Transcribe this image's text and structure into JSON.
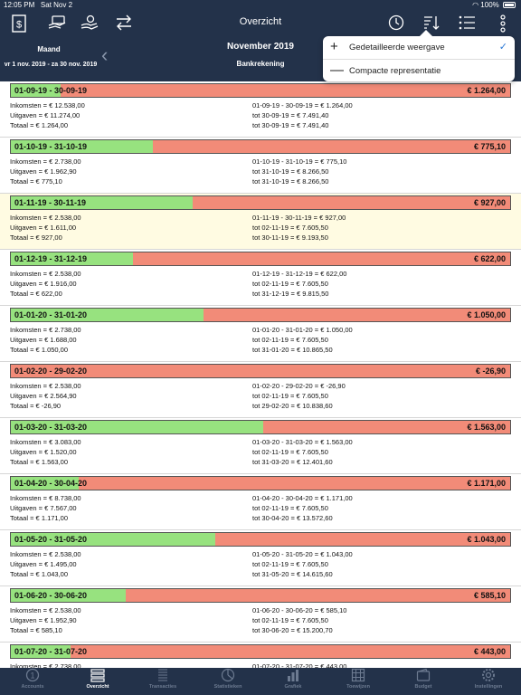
{
  "status_bar": {
    "time": "12:05 PM",
    "date": "Sat Nov 2",
    "wifi": "wifi-icon",
    "battery": "100%"
  },
  "navbar": {
    "title": "Overzicht",
    "period_label": "Maand",
    "period_range": "vr 1 nov. 2019 - za 30 nov. 2019",
    "month_title": "November 2019",
    "account": "Bankrekening"
  },
  "popover": {
    "items": [
      {
        "label": "Gedetailleerde weergave",
        "glyph": "+",
        "checked": true
      },
      {
        "label": "Compacte representatie",
        "glyph": "—",
        "checked": false
      }
    ]
  },
  "periods": [
    {
      "range": "01-09-19 - 30-09-19",
      "total": "€ 1.264,00",
      "income_fraction": 0.1,
      "current": false,
      "left": [
        "Inkomsten = € 12.538,00",
        "Uitgaven = € 11.274,00",
        "Totaal = € 1.264,00"
      ],
      "right": [
        "01-09-19 - 30-09-19 = € 1.264,00",
        "tot 30-09-19 = € 7.491,40",
        "tot 30-09-19 = € 7.491,40"
      ]
    },
    {
      "range": "01-10-19 - 31-10-19",
      "total": "€ 775,10",
      "income_fraction": 0.285,
      "current": false,
      "left": [
        "Inkomsten = € 2.738,00",
        "Uitgaven = € 1.962,90",
        "Totaal = € 775,10"
      ],
      "right": [
        "01-10-19 - 31-10-19 = € 775,10",
        "tot 31-10-19 = € 8.266,50",
        "tot 31-10-19 = € 8.266,50"
      ]
    },
    {
      "range": "01-11-19 - 30-11-19",
      "total": "€ 927,00",
      "income_fraction": 0.365,
      "current": true,
      "left": [
        "Inkomsten = € 2.538,00",
        "Uitgaven = € 1.611,00",
        "Totaal = € 927,00"
      ],
      "right": [
        "01-11-19 - 30-11-19 = € 927,00",
        "tot 02-11-19 = € 7.605,50",
        "tot 30-11-19 = € 9.193,50"
      ]
    },
    {
      "range": "01-12-19 - 31-12-19",
      "total": "€ 622,00",
      "income_fraction": 0.245,
      "current": false,
      "left": [
        "Inkomsten = € 2.538,00",
        "Uitgaven = € 1.916,00",
        "Totaal = € 622,00"
      ],
      "right": [
        "01-12-19 - 31-12-19 = € 622,00",
        "tot 02-11-19 = € 7.605,50",
        "tot 31-12-19 = € 9.815,50"
      ]
    },
    {
      "range": "01-01-20 - 31-01-20",
      "total": "€ 1.050,00",
      "income_fraction": 0.385,
      "current": false,
      "left": [
        "Inkomsten = € 2.738,00",
        "Uitgaven = € 1.688,00",
        "Totaal = € 1.050,00"
      ],
      "right": [
        "01-01-20 - 31-01-20 = € 1.050,00",
        "tot 02-11-19 = € 7.605,50",
        "tot 31-01-20 = € 10.865,50"
      ]
    },
    {
      "range": "01-02-20 - 29-02-20",
      "total": "€ -26,90",
      "income_fraction": 0,
      "current": false,
      "left": [
        "Inkomsten = € 2.538,00",
        "Uitgaven = € 2.564,90",
        "Totaal = € -26,90"
      ],
      "right": [
        "01-02-20 - 29-02-20 = € -26,90",
        "tot 02-11-19 = € 7.605,50",
        "tot 29-02-20 = € 10.838,60"
      ]
    },
    {
      "range": "01-03-20 - 31-03-20",
      "total": "€ 1.563,00",
      "income_fraction": 0.505,
      "current": false,
      "left": [
        "Inkomsten = € 3.083,00",
        "Uitgaven = € 1.520,00",
        "Totaal = € 1.563,00"
      ],
      "right": [
        "01-03-20 - 31-03-20 = € 1.563,00",
        "tot 02-11-19 = € 7.605,50",
        "tot 31-03-20 = € 12.401,60"
      ]
    },
    {
      "range": "01-04-20 - 30-04-20",
      "total": "€ 1.171,00",
      "income_fraction": 0.135,
      "current": false,
      "left": [
        "Inkomsten = € 8.738,00",
        "Uitgaven = € 7.567,00",
        "Totaal = € 1.171,00"
      ],
      "right": [
        "01-04-20 - 30-04-20 = € 1.171,00",
        "tot 02-11-19 = € 7.605,50",
        "tot 30-04-20 = € 13.572,60"
      ]
    },
    {
      "range": "01-05-20 - 31-05-20",
      "total": "€ 1.043,00",
      "income_fraction": 0.41,
      "current": false,
      "left": [
        "Inkomsten = € 2.538,00",
        "Uitgaven = € 1.495,00",
        "Totaal = € 1.043,00"
      ],
      "right": [
        "01-05-20 - 31-05-20 = € 1.043,00",
        "tot 02-11-19 = € 7.605,50",
        "tot 31-05-20 = € 14.615,60"
      ]
    },
    {
      "range": "01-06-20 - 30-06-20",
      "total": "€ 585,10",
      "income_fraction": 0.23,
      "current": false,
      "left": [
        "Inkomsten = € 2.538,00",
        "Uitgaven = € 1.952,90",
        "Totaal = € 585,10"
      ],
      "right": [
        "01-06-20 - 30-06-20 = € 585,10",
        "tot 02-11-19 = € 7.605,50",
        "tot 30-06-20 = € 15.200,70"
      ]
    },
    {
      "range": "01-07-20 - 31-07-20",
      "total": "€ 443,00",
      "income_fraction": 0.12,
      "current": false,
      "left": [
        "Inkomsten = € 2.738,00",
        "",
        ""
      ],
      "right": [
        "01-07-20 - 31-07-20 = € 443,00",
        "",
        ""
      ]
    }
  ],
  "tabs": [
    {
      "label": "Accounts",
      "icon": "coin-icon",
      "active": false
    },
    {
      "label": "Overzicht",
      "icon": "overview-icon",
      "active": true
    },
    {
      "label": "Transacties",
      "icon": "transactions-icon",
      "active": false
    },
    {
      "label": "Statistieken",
      "icon": "statistics-icon",
      "active": false
    },
    {
      "label": "Grafiek",
      "icon": "chart-icon",
      "active": false
    },
    {
      "label": "Toewijzen",
      "icon": "assign-icon",
      "active": false
    },
    {
      "label": "Budget",
      "icon": "wallet-icon",
      "active": false
    },
    {
      "label": "Instellingen",
      "icon": "gear-icon",
      "active": false
    }
  ]
}
